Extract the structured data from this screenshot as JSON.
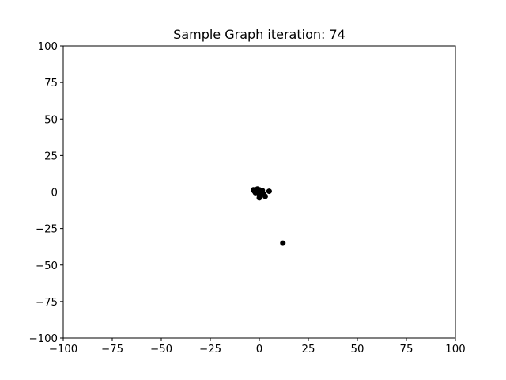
{
  "chart_data": {
    "type": "scatter",
    "title": "Sample Graph iteration: 74",
    "xlabel": "",
    "ylabel": "",
    "xlim": [
      -100,
      100
    ],
    "ylim": [
      -100,
      100
    ],
    "xticks": [
      -100,
      -75,
      -50,
      -25,
      0,
      25,
      50,
      75,
      100
    ],
    "yticks": [
      -100,
      -75,
      -50,
      -25,
      0,
      25,
      50,
      75,
      100
    ],
    "xtick_labels": [
      "−100",
      "−75",
      "−50",
      "−25",
      "0",
      "25",
      "50",
      "75",
      "100"
    ],
    "ytick_labels": [
      "−100",
      "−75",
      "−50",
      "−25",
      "0",
      "25",
      "50",
      "75",
      "100"
    ],
    "grid": false,
    "point_color": "#000000",
    "series": [
      {
        "points": [
          {
            "x": -3,
            "y": 1.5
          },
          {
            "x": -2.5,
            "y": 0.5
          },
          {
            "x": -2,
            "y": -0.5
          },
          {
            "x": -1.5,
            "y": 1
          },
          {
            "x": -1,
            "y": 2
          },
          {
            "x": -0.5,
            "y": 0
          },
          {
            "x": 0,
            "y": 1.5
          },
          {
            "x": 0,
            "y": -1.5
          },
          {
            "x": 0.5,
            "y": 0.5
          },
          {
            "x": 1,
            "y": -0.5
          },
          {
            "x": 0,
            "y": -4
          },
          {
            "x": 1.5,
            "y": 1
          },
          {
            "x": 2,
            "y": -1
          },
          {
            "x": 3,
            "y": -3
          },
          {
            "x": 5,
            "y": 0.5
          },
          {
            "x": 12,
            "y": -35
          }
        ]
      }
    ]
  }
}
